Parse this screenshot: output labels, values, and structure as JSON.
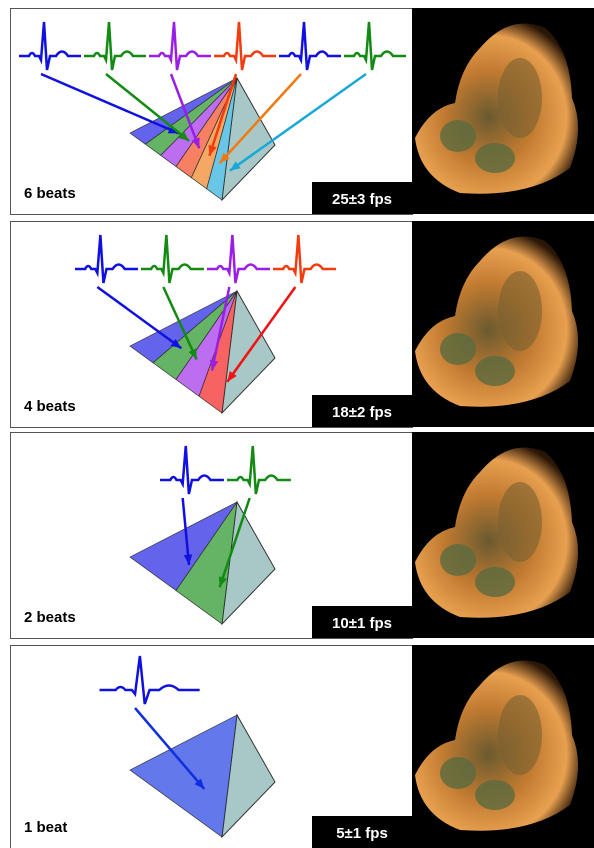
{
  "panels": [
    {
      "beats": "6 beats",
      "fps": "25±3 fps",
      "beat_colors": [
        "#1010e0",
        "#138a13",
        "#9a1ee6",
        "#f23c10",
        "#1010e0",
        "#138a13"
      ],
      "sector_colors": [
        "#1010e0",
        "#138a13",
        "#9a1ee6",
        "#f23c10",
        "#f07a10",
        "#18a8d8"
      ]
    },
    {
      "beats": "4 beats",
      "fps": "18±2 fps",
      "beat_colors": [
        "#1010e0",
        "#138a13",
        "#9a1ee6",
        "#f23c10"
      ],
      "sector_colors": [
        "#1010e0",
        "#138a13",
        "#9a1ee6",
        "#f21010"
      ]
    },
    {
      "beats": "2 beats",
      "fps": "10±1 fps",
      "beat_colors": [
        "#1010e0",
        "#138a13"
      ],
      "sector_colors": [
        "#1010e0",
        "#138a13"
      ]
    },
    {
      "beats": "1 beat",
      "fps": "5±1 fps",
      "beat_colors": [
        "#1010e0"
      ],
      "sector_colors": [
        "#1030e0"
      ]
    }
  ]
}
